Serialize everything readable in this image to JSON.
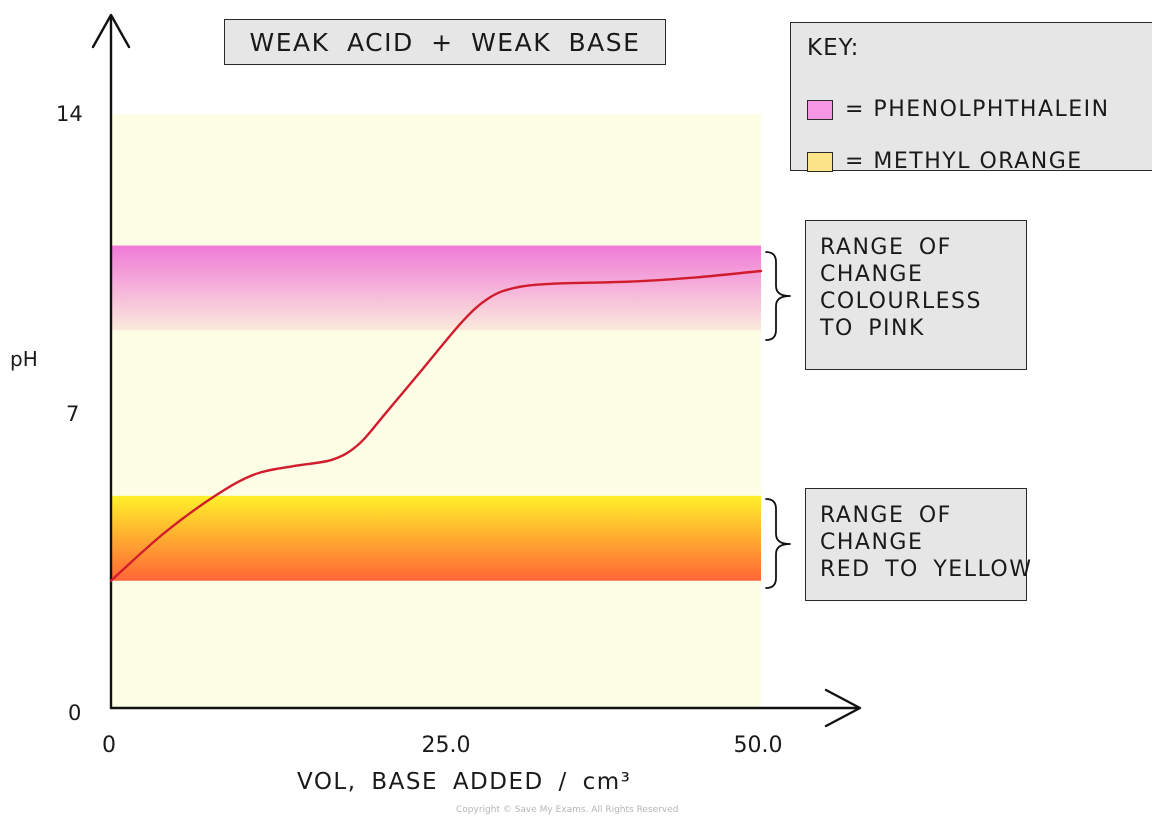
{
  "chart_data": {
    "type": "line",
    "title": "WEAK ACID + WEAK BASE",
    "xlabel": "VOL, BASE ADDED / cm³",
    "ylabel": "pH",
    "xlim": [
      0,
      50.0
    ],
    "ylim": [
      0,
      14
    ],
    "x_ticks": [
      {
        "value": 0,
        "label": "0"
      },
      {
        "value": 25.0,
        "label": "25.0"
      },
      {
        "value": 50.0,
        "label": "50.0"
      }
    ],
    "y_ticks": [
      {
        "value": 0,
        "label": "0"
      },
      {
        "value": 7,
        "label": "7"
      },
      {
        "value": 14,
        "label": "14"
      }
    ],
    "series": [
      {
        "color": "#d01c2c",
        "x": [
          0,
          4,
          8,
          11,
          14,
          17,
          19,
          21,
          24,
          27,
          29,
          31,
          34,
          40,
          45,
          50
        ],
        "y": [
          3.0,
          4.1,
          5.0,
          5.5,
          5.7,
          5.85,
          6.2,
          6.9,
          8.0,
          9.1,
          9.65,
          9.9,
          10.0,
          10.05,
          10.15,
          10.3
        ]
      }
    ],
    "bands": [
      {
        "name": "phenolphthalein",
        "range": [
          8.9,
          10.9
        ],
        "top_color": "#f07ad8",
        "bottom_color": "#fbeadc"
      },
      {
        "name": "methyl orange",
        "range": [
          3.0,
          5.0
        ],
        "top_color": "#fff02a",
        "bottom_color": "#ff6636"
      }
    ],
    "background_color": "#fefde6",
    "grid": false,
    "legend": {
      "placement": "top-right",
      "title": "KEY:",
      "entries": [
        {
          "label": "= PHENOLPHTHALEIN",
          "color": "#f797e3"
        },
        {
          "label": "= METHYL ORANGE",
          "color": "#fde38a"
        }
      ]
    },
    "annotations": [
      {
        "lines": [
          "RANGE OF",
          "CHANGE",
          "COLOURLESS",
          "TO PINK"
        ],
        "refers_to": [
          8.9,
          10.9
        ]
      },
      {
        "lines": [
          "RANGE OF",
          "CHANGE",
          "RED TO YELLOW"
        ],
        "refers_to": [
          3.0,
          5.0
        ]
      }
    ]
  },
  "copyright": "Copyright © Save My Exams. All Rights Reserved"
}
